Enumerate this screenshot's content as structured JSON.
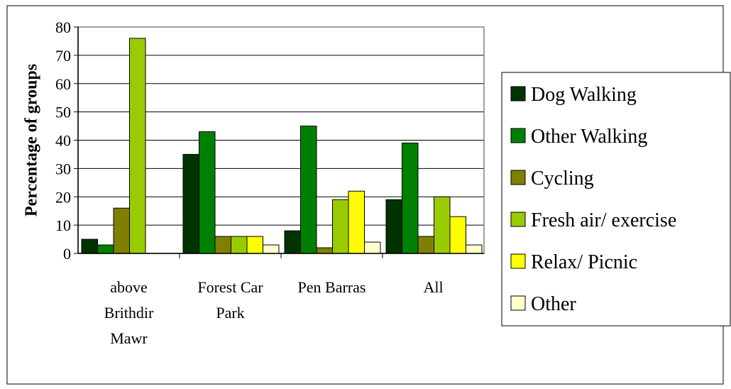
{
  "chart_data": {
    "type": "bar",
    "categories": [
      [
        "above",
        "Brithdir",
        "Mawr"
      ],
      [
        "Forest Car",
        "Park"
      ],
      [
        "Pen Barras"
      ],
      [
        "All"
      ]
    ],
    "series": [
      {
        "name": "Dog Walking",
        "color": "#003300",
        "values": [
          5,
          35,
          8,
          19
        ]
      },
      {
        "name": "Other Walking",
        "color": "#008000",
        "values": [
          3,
          43,
          45,
          39
        ]
      },
      {
        "name": "Cycling",
        "color": "#808000",
        "values": [
          16,
          6,
          2,
          6
        ]
      },
      {
        "name": "Fresh air/ exercise",
        "color": "#99CC00",
        "values": [
          76,
          6,
          19,
          20
        ]
      },
      {
        "name": "Relax/ Picnic",
        "color": "#FFFF00",
        "values": [
          0,
          6,
          22,
          13
        ]
      },
      {
        "name": "Other",
        "color": "#FFFFCC",
        "values": [
          0,
          3,
          4,
          3
        ]
      }
    ],
    "ylabel": "Percentage of groups",
    "ylim": [
      0,
      80
    ],
    "yticks": [
      "0",
      "10",
      "20",
      "30",
      "40",
      "50",
      "60",
      "70",
      "80"
    ],
    "grid": true,
    "legend_position": "right"
  }
}
